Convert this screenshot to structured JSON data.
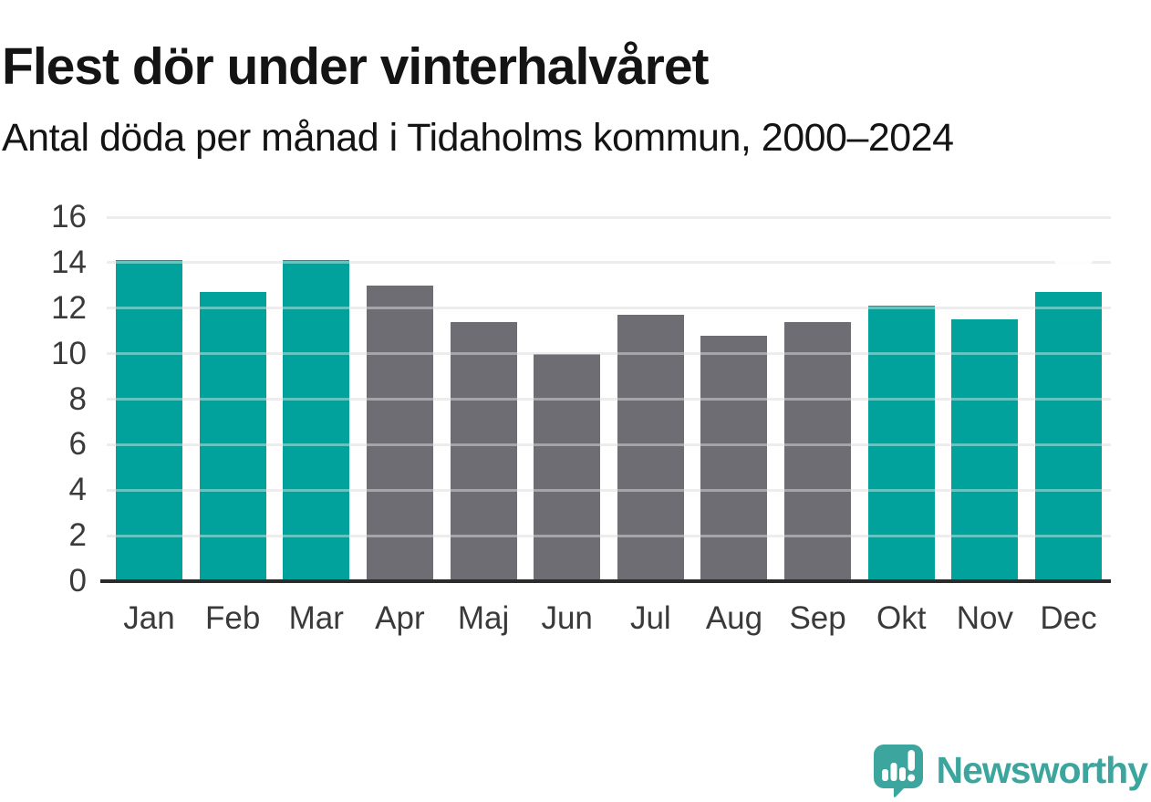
{
  "page": {
    "title": "Flest dör under vinterhalvåret",
    "subtitle": "Antal döda per månad i Tidaholms kommun, 2000–2024"
  },
  "brand": {
    "name": "Newsworthy",
    "icon": "newsworthy-speech-bubble-barchart-icon",
    "color": "#3ba59e"
  },
  "colors": {
    "bar_teal": "#00a29b",
    "bar_gray": "#6e6d73",
    "gridline": "#e3e3e3",
    "axis_line": "#2b2b2b",
    "title_text": "#141414",
    "tick_text": "#3a3a3a",
    "background": "#ffffff"
  },
  "chart_data": {
    "type": "bar",
    "title": "Flest dör under vinterhalvåret",
    "subtitle": "Antal döda per månad i Tidaholms kommun, 2000–2024",
    "categories": [
      "Jan",
      "Feb",
      "Mar",
      "Apr",
      "Maj",
      "Jun",
      "Jul",
      "Aug",
      "Sep",
      "Okt",
      "Nov",
      "Dec"
    ],
    "values": [
      14.1,
      12.7,
      14.1,
      13.0,
      11.4,
      10.0,
      11.7,
      10.8,
      11.4,
      12.1,
      11.5,
      12.7
    ],
    "bar_colors": [
      "#00a29b",
      "#00a29b",
      "#00a29b",
      "#6e6d73",
      "#6e6d73",
      "#6e6d73",
      "#6e6d73",
      "#6e6d73",
      "#6e6d73",
      "#00a29b",
      "#00a29b",
      "#00a29b"
    ],
    "xlabel": "",
    "ylabel": "",
    "ylim": [
      0,
      16
    ],
    "yticks": [
      0,
      2,
      4,
      6,
      8,
      10,
      12,
      14,
      16
    ],
    "grid": "horizontal",
    "legend": "none"
  }
}
